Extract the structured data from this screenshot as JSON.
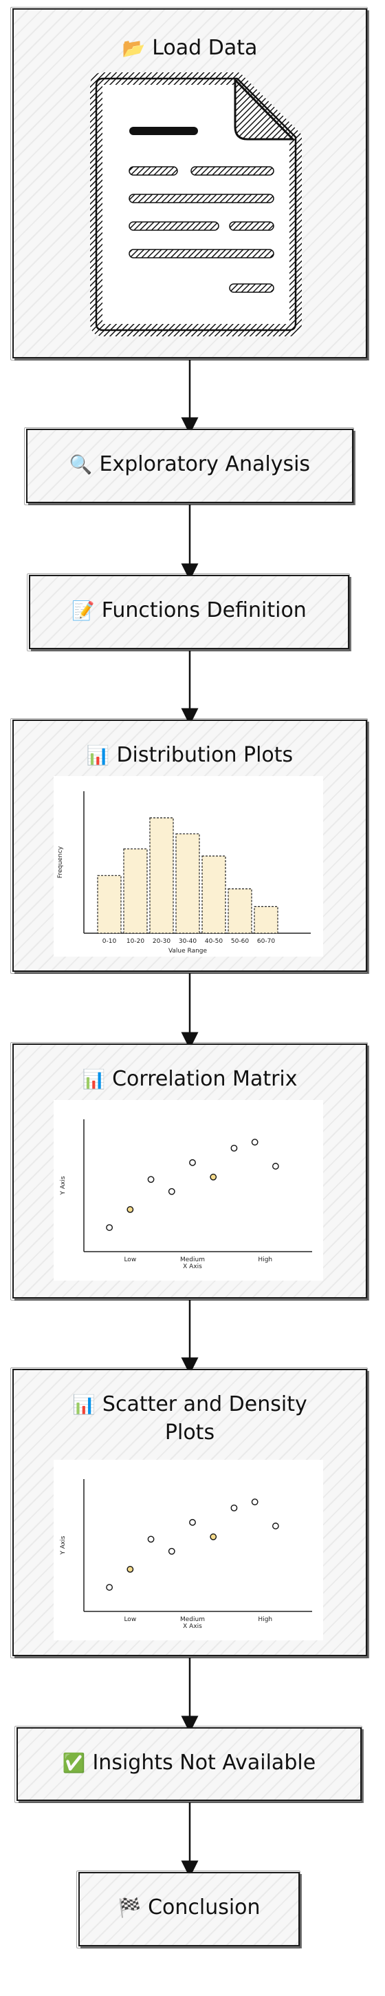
{
  "nodes": {
    "load_data": {
      "label": "Load Data",
      "icon": "📂"
    },
    "exploratory": {
      "label": "Exploratory Analysis",
      "icon": "🔍"
    },
    "functions": {
      "label": "Functions Definition",
      "icon": "📝"
    },
    "distribution": {
      "label": "Distribution Plots",
      "icon": "📊"
    },
    "correlation": {
      "label": "Correlation Matrix",
      "icon": "📊"
    },
    "scatter": {
      "label_line1": "Scatter and Density",
      "label_line2": "Plots",
      "icon": "📊"
    },
    "insights": {
      "label": "Insights Not Available",
      "icon": "✅"
    },
    "conclusion": {
      "label": "Conclusion",
      "icon": "🏁"
    }
  },
  "chart_data": [
    {
      "type": "bar",
      "categories": [
        "0-10",
        "10-20",
        "20-30",
        "30-40",
        "40-50",
        "50-60",
        "60-70"
      ],
      "values": [
        6.5,
        9.5,
        13,
        11.2,
        8.7,
        5,
        3
      ],
      "xlabel": "Value Range",
      "ylabel": "Frequency",
      "ylim": [
        0,
        16
      ],
      "bar_color": "#fbf0d2"
    },
    {
      "type": "scatter",
      "x_ticks": [
        "Low",
        "Medium",
        "High"
      ],
      "xlabel": "X Axis",
      "ylabel": "Y Axis",
      "x": [
        1,
        2,
        3,
        4,
        5,
        6,
        7,
        8,
        9
      ],
      "y": [
        2,
        3.5,
        6,
        5,
        7.4,
        6.2,
        8.6,
        9.1,
        7.1
      ],
      "ylim": [
        0,
        11
      ]
    },
    {
      "type": "scatter",
      "x_ticks": [
        "Low",
        "Medium",
        "High"
      ],
      "xlabel": "X Axis",
      "ylabel": "Y Axis",
      "x": [
        1,
        2,
        3,
        4,
        5,
        6,
        7,
        8,
        9
      ],
      "y": [
        2,
        3.5,
        6,
        5,
        7.4,
        6.2,
        8.6,
        9.1,
        7.1
      ],
      "ylim": [
        0,
        11
      ]
    }
  ]
}
